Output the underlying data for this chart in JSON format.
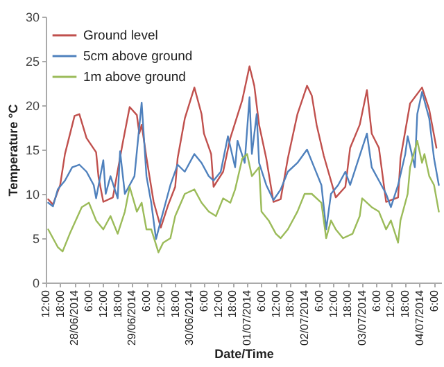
{
  "chart_data": {
    "type": "line",
    "xlabel": "Date/Time",
    "ylabel": "Temperature °C",
    "xlim": [
      "2014-06-27T12:00",
      "2014-07-04T09:00"
    ],
    "ylim": [
      0,
      30
    ],
    "yticks": [
      0,
      5,
      10,
      15,
      20,
      25,
      30
    ],
    "xticks": [
      {
        "value": "2014-06-27T12:00",
        "label": "12:00"
      },
      {
        "value": "2014-06-27T18:00",
        "label": "18:00"
      },
      {
        "value": "2014-06-28T00:00",
        "label": "28/06/2014"
      },
      {
        "value": "2014-06-28T06:00",
        "label": "6:00"
      },
      {
        "value": "2014-06-28T12:00",
        "label": "12:00"
      },
      {
        "value": "2014-06-28T18:00",
        "label": "18:00"
      },
      {
        "value": "2014-06-29T00:00",
        "label": "29/06/2014"
      },
      {
        "value": "2014-06-29T06:00",
        "label": "6:00"
      },
      {
        "value": "2014-06-29T12:00",
        "label": "12:00"
      },
      {
        "value": "2014-06-29T18:00",
        "label": "18:00"
      },
      {
        "value": "2014-06-30T00:00",
        "label": "30/06/2014"
      },
      {
        "value": "2014-06-30T06:00",
        "label": "6:00"
      },
      {
        "value": "2014-06-30T12:00",
        "label": "12:00"
      },
      {
        "value": "2014-06-30T18:00",
        "label": "18:00"
      },
      {
        "value": "2014-07-01T00:00",
        "label": "01/07/2014"
      },
      {
        "value": "2014-07-01T06:00",
        "label": "6:00"
      },
      {
        "value": "2014-07-01T12:00",
        "label": "12:00"
      },
      {
        "value": "2014-07-01T18:00",
        "label": "18:00"
      },
      {
        "value": "2014-07-02T00:00",
        "label": "02/07/2014"
      },
      {
        "value": "2014-07-02T06:00",
        "label": "6:00"
      },
      {
        "value": "2014-07-02T12:00",
        "label": "12:00"
      },
      {
        "value": "2014-07-02T18:00",
        "label": "18:00"
      },
      {
        "value": "2014-07-03T00:00",
        "label": "03/07/2014"
      },
      {
        "value": "2014-07-03T06:00",
        "label": "6:00"
      },
      {
        "value": "2014-07-03T12:00",
        "label": "12:00"
      },
      {
        "value": "2014-07-03T18:00",
        "label": "18:00"
      },
      {
        "value": "2014-07-04T00:00",
        "label": "04/07/2014"
      },
      {
        "value": "2014-07-04T06:00",
        "label": "6:00"
      }
    ],
    "grid": false,
    "legend": "top left",
    "marker": "none",
    "line_style": "solid",
    "series": [
      {
        "name": "Ground level",
        "color": "#c0504d",
        "x": [
          "2014-06-27T13:00",
          "2014-06-27T15:00",
          "2014-06-27T18:00",
          "2014-06-27T20:00",
          "2014-06-28T00:00",
          "2014-06-28T02:00",
          "2014-06-28T05:00",
          "2014-06-28T09:00",
          "2014-06-28T10:00",
          "2014-06-28T12:00",
          "2014-06-28T16:00",
          "2014-06-28T20:00",
          "2014-06-28T23:00",
          "2014-06-29T02:00",
          "2014-06-29T03:00",
          "2014-06-29T04:00",
          "2014-06-29T06:00",
          "2014-06-29T09:00",
          "2014-06-29T12:00",
          "2014-06-29T15:00",
          "2014-06-29T18:00",
          "2014-06-29T19:00",
          "2014-06-29T22:00",
          "2014-06-30T02:00",
          "2014-06-30T05:00",
          "2014-06-30T06:00",
          "2014-06-30T09:00",
          "2014-06-30T10:00",
          "2014-06-30T14:00",
          "2014-06-30T17:00",
          "2014-06-30T22:00",
          "2014-07-01T01:00",
          "2014-07-01T03:00",
          "2014-07-01T05:00",
          "2014-07-01T08:00",
          "2014-07-01T11:00",
          "2014-07-01T14:00",
          "2014-07-01T17:00",
          "2014-07-01T21:00",
          "2014-07-02T01:00",
          "2014-07-02T03:00",
          "2014-07-02T05:00",
          "2014-07-02T08:00",
          "2014-07-02T13:00",
          "2014-07-02T17:00",
          "2014-07-02T19:00",
          "2014-07-02T23:00",
          "2014-07-03T02:00",
          "2014-07-03T04:00",
          "2014-07-03T07:00",
          "2014-07-03T10:00",
          "2014-07-03T15:00",
          "2014-07-03T16:00",
          "2014-07-03T20:00",
          "2014-07-04T01:00",
          "2014-07-04T04:00",
          "2014-07-04T07:00"
        ],
        "values": [
          9.4,
          8.8,
          11,
          14.5,
          18.8,
          19,
          16.3,
          14.7,
          11.9,
          9.1,
          9.6,
          15.6,
          19.8,
          18.9,
          16.8,
          17.8,
          14.1,
          9.1,
          6.2,
          8.7,
          10.8,
          14,
          18.5,
          22,
          19,
          16.8,
          14.5,
          10.8,
          12.5,
          16.3,
          20.6,
          24.4,
          22.2,
          17.8,
          14,
          9.1,
          9.4,
          14,
          19,
          22.2,
          21.1,
          17.8,
          14.3,
          9.6,
          10.8,
          15.2,
          17.8,
          21.7,
          16.8,
          15.2,
          9.1,
          9.6,
          14,
          20.2,
          22,
          19.5,
          15.2
        ]
      },
      {
        "name": "5cm above ground",
        "color": "#4f81bd",
        "x": [
          "2014-06-27T13:00",
          "2014-06-27T15:00",
          "2014-06-27T17:00",
          "2014-06-27T20:00",
          "2014-06-27T23:00",
          "2014-06-28T02:00",
          "2014-06-28T05:00",
          "2014-06-28T08:00",
          "2014-06-28T09:00",
          "2014-06-28T12:00",
          "2014-06-28T13:00",
          "2014-06-28T15:00",
          "2014-06-28T18:00",
          "2014-06-28T19:00",
          "2014-06-28T21:00",
          "2014-06-29T01:00",
          "2014-06-29T04:00",
          "2014-06-29T06:00",
          "2014-06-29T08:00",
          "2014-06-29T10:00",
          "2014-06-29T12:00",
          "2014-06-29T14:00",
          "2014-06-29T16:00",
          "2014-06-29T19:00",
          "2014-06-29T22:00",
          "2014-06-30T02:00",
          "2014-06-30T05:00",
          "2014-06-30T08:00",
          "2014-06-30T10:00",
          "2014-06-30T13:00",
          "2014-06-30T16:00",
          "2014-06-30T19:00",
          "2014-06-30T20:00",
          "2014-06-30T23:00",
          "2014-07-01T01:00",
          "2014-07-01T02:00",
          "2014-07-01T04:00",
          "2014-07-01T05:00",
          "2014-07-01T08:00",
          "2014-07-01T11:00",
          "2014-07-01T14:00",
          "2014-07-01T17:00",
          "2014-07-01T21:00",
          "2014-07-02T01:00",
          "2014-07-02T04:00",
          "2014-07-02T07:00",
          "2014-07-02T09:00",
          "2014-07-02T11:00",
          "2014-07-02T14:00",
          "2014-07-02T17:00",
          "2014-07-02T19:00",
          "2014-07-02T22:00",
          "2014-07-03T02:00",
          "2014-07-03T04:00",
          "2014-07-03T07:00",
          "2014-07-03T10:00",
          "2014-07-03T12:00",
          "2014-07-03T15:00",
          "2014-07-03T18:00",
          "2014-07-03T19:00",
          "2014-07-03T22:00",
          "2014-07-03T23:00",
          "2014-07-04T01:00",
          "2014-07-04T04:00",
          "2014-07-04T06:00",
          "2014-07-04T08:00"
        ],
        "values": [
          9,
          8.6,
          10.5,
          11.5,
          13,
          13.3,
          12.5,
          11,
          9.5,
          13.8,
          10,
          12,
          9.5,
          14.8,
          10,
          12,
          20.3,
          12,
          9,
          4.9,
          7,
          9,
          11,
          13.3,
          12.5,
          14.5,
          13.5,
          12,
          11.5,
          12.5,
          16.5,
          13,
          16,
          13.5,
          20.9,
          14.5,
          19,
          13.5,
          11,
          9.3,
          10.5,
          12.5,
          13.5,
          15,
          13,
          11,
          6,
          10,
          11,
          12.5,
          11,
          13.5,
          16.8,
          13,
          11.5,
          10,
          8.5,
          11,
          14.5,
          16.5,
          13,
          19,
          21.5,
          18.5,
          14,
          11
        ]
      },
      {
        "name": "1m above ground",
        "color": "#9bbb59",
        "x": [
          "2014-06-27T13:00",
          "2014-06-27T17:00",
          "2014-06-27T19:00",
          "2014-06-27T22:00",
          "2014-06-28T03:00",
          "2014-06-28T06:00",
          "2014-06-28T09:00",
          "2014-06-28T12:00",
          "2014-06-28T15:00",
          "2014-06-28T18:00",
          "2014-06-28T21:00",
          "2014-06-28T23:00",
          "2014-06-29T02:00",
          "2014-06-29T04:00",
          "2014-06-29T06:00",
          "2014-06-29T08:00",
          "2014-06-29T11:00",
          "2014-06-29T13:00",
          "2014-06-29T16:00",
          "2014-06-29T18:00",
          "2014-06-29T22:00",
          "2014-06-30T02:00",
          "2014-06-30T05:00",
          "2014-06-30T08:00",
          "2014-06-30T11:00",
          "2014-06-30T14:00",
          "2014-06-30T17:00",
          "2014-06-30T19:00",
          "2014-06-30T22:00",
          "2014-07-01T00:00",
          "2014-07-01T02:00",
          "2014-07-01T05:00",
          "2014-07-01T06:00",
          "2014-07-01T09:00",
          "2014-07-01T12:00",
          "2014-07-01T14:00",
          "2014-07-01T17:00",
          "2014-07-01T21:00",
          "2014-07-02T00:00",
          "2014-07-02T03:00",
          "2014-07-02T07:00",
          "2014-07-02T09:00",
          "2014-07-02T11:00",
          "2014-07-02T13:00",
          "2014-07-02T16:00",
          "2014-07-02T20:00",
          "2014-07-02T23:00",
          "2014-07-03T00:00",
          "2014-07-03T04:00",
          "2014-07-03T07:00",
          "2014-07-03T10:00",
          "2014-07-03T12:00",
          "2014-07-03T15:00",
          "2014-07-03T16:00",
          "2014-07-03T19:00",
          "2014-07-03T20:00",
          "2014-07-03T23:00",
          "2014-07-04T01:00",
          "2014-07-04T02:00",
          "2014-07-04T04:00",
          "2014-07-04T06:00",
          "2014-07-04T08:00"
        ],
        "values": [
          6,
          4,
          3.5,
          5.5,
          8.5,
          9,
          7,
          6,
          7.5,
          5.5,
          8,
          10.8,
          8,
          9,
          6,
          6,
          3.4,
          4.5,
          5,
          7.5,
          10,
          10.5,
          9,
          8,
          7.5,
          9.5,
          9,
          10.5,
          14,
          14.5,
          12,
          13,
          8,
          7,
          5.5,
          5,
          6,
          8,
          10,
          10,
          9,
          5,
          7,
          6,
          5,
          5.5,
          7.5,
          9.5,
          8.5,
          8,
          6,
          7,
          4.5,
          7,
          10,
          13,
          16,
          13.5,
          14.5,
          12,
          11,
          8
        ]
      }
    ]
  }
}
